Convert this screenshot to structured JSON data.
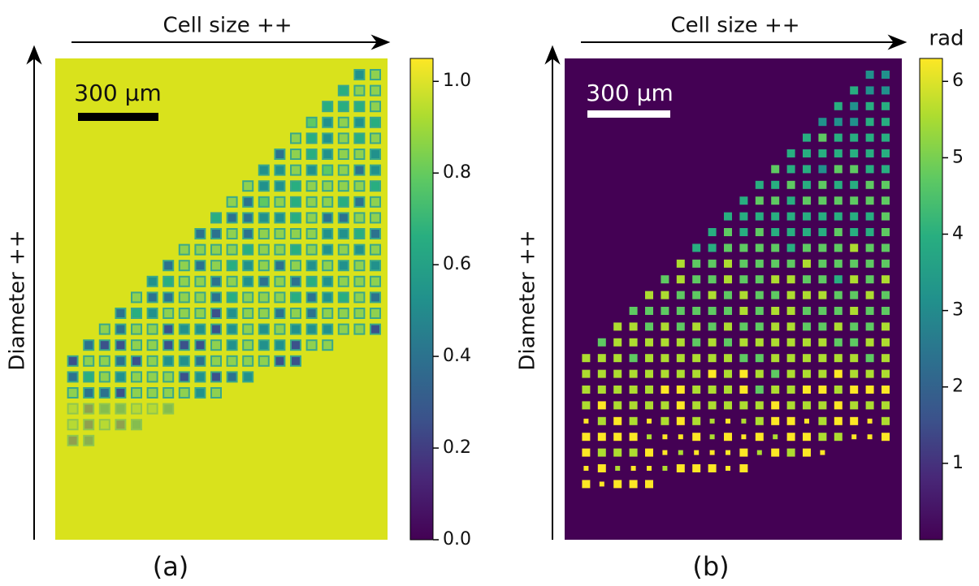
{
  "panels": [
    {
      "label": "(a)",
      "x_axis_label": "Cell size ++",
      "y_axis_label": "Diameter ++",
      "scale_bar": "300 μm",
      "colorbar": {
        "lim": [
          0,
          1.05
        ],
        "ticks": [
          {
            "value": 0,
            "label": "0.0"
          },
          0.2,
          0.4,
          0.6,
          0.8,
          {
            "value": 1,
            "label": "1.0"
          }
        ]
      }
    },
    {
      "label": "(b)",
      "x_axis_label": "Cell size ++",
      "y_axis_label": "Diameter ++",
      "scale_bar": "300 μm",
      "colorbar": {
        "title": "rad",
        "lim": [
          0,
          6.3
        ],
        "ticks": [
          1,
          2,
          3,
          4,
          5,
          6
        ]
      }
    }
  ]
}
